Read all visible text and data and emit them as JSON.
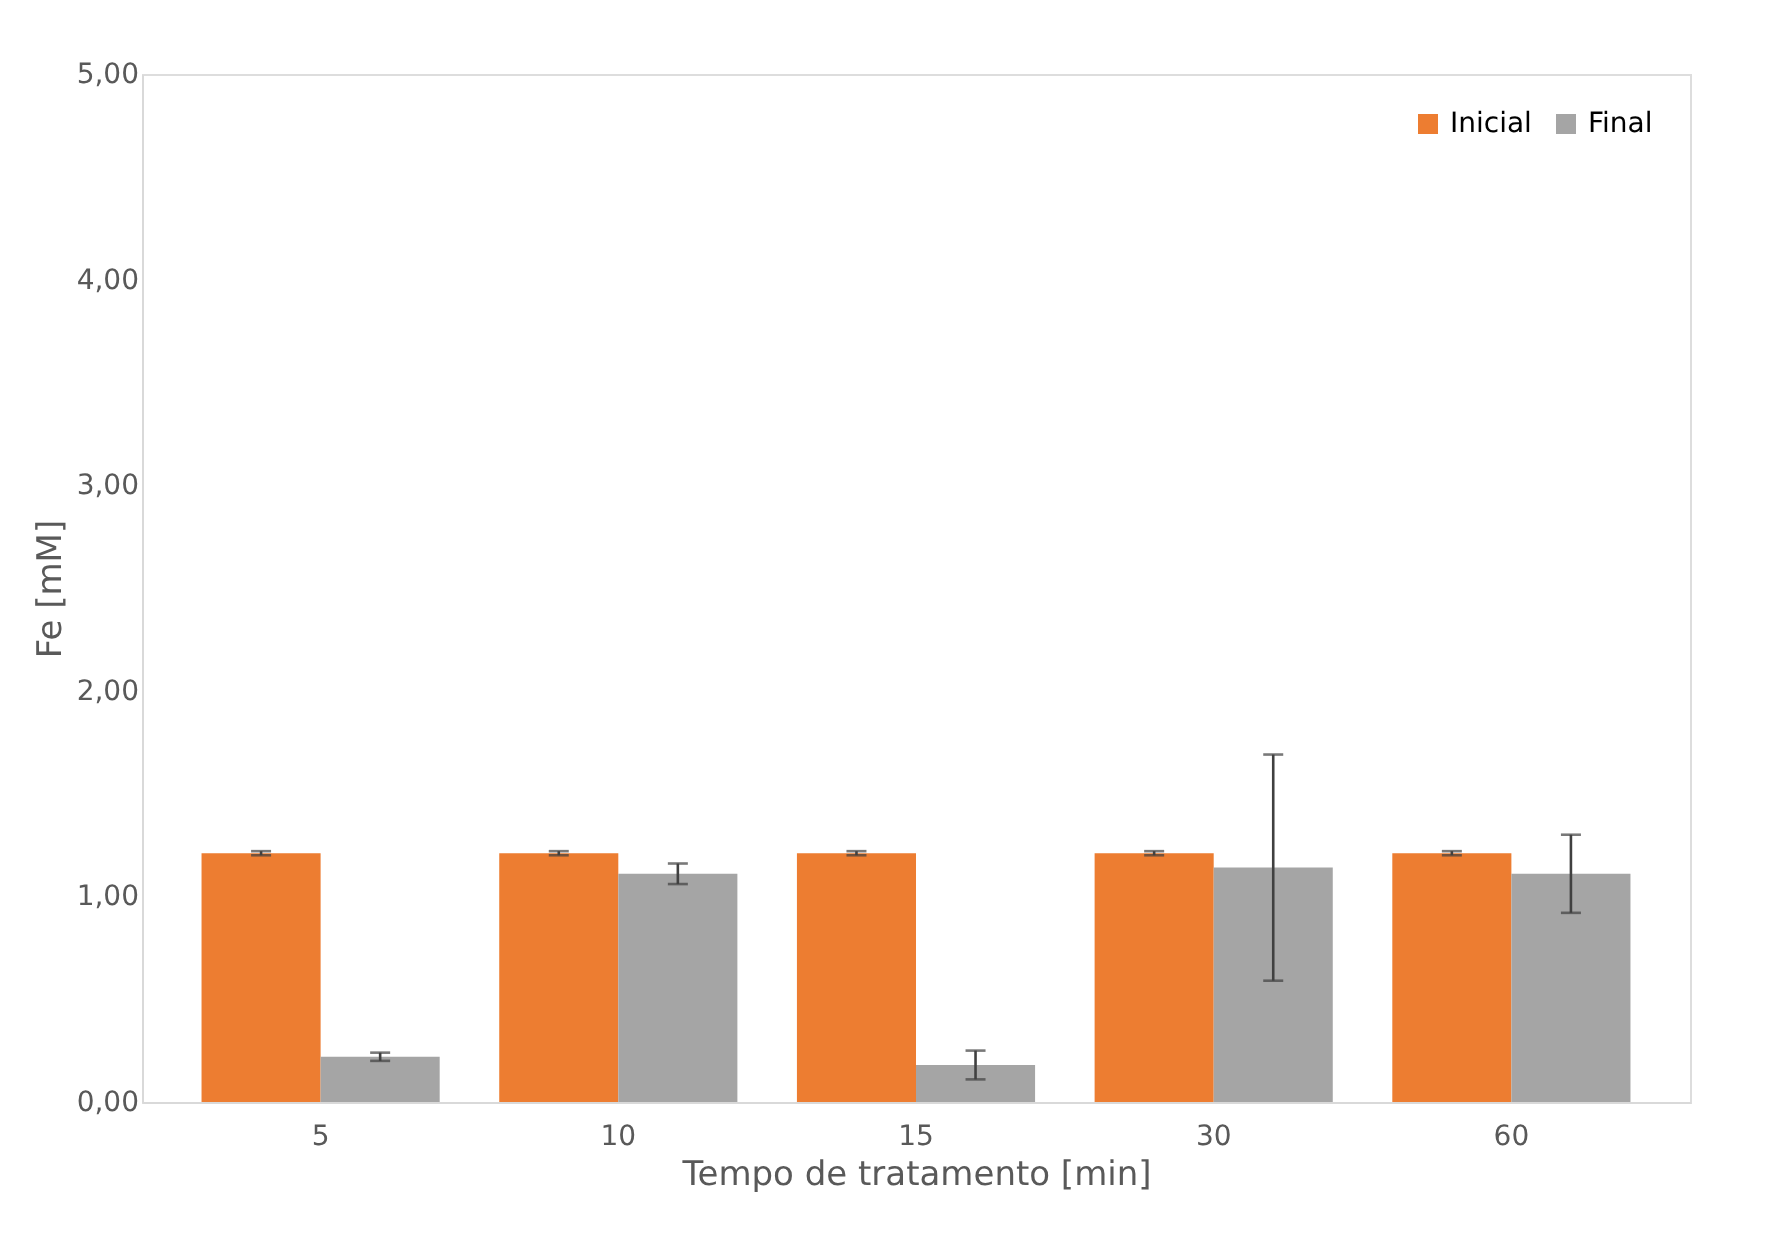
{
  "chart_data": {
    "type": "bar",
    "xlabel": "Tempo de tratamento [min]",
    "ylabel": "Fe [mM]",
    "categories": [
      "5",
      "10",
      "15",
      "30",
      "60"
    ],
    "series": [
      {
        "name": "Inicial",
        "color": "#ed7d31",
        "values": [
          1.21,
          1.21,
          1.21,
          1.21,
          1.21
        ],
        "errors": [
          0.01,
          0.01,
          0.01,
          0.01,
          0.01
        ]
      },
      {
        "name": "Final",
        "color": "#a5a5a5",
        "values": [
          0.22,
          1.11,
          0.18,
          1.14,
          1.11
        ],
        "errors": [
          [
            0.2,
            0.24
          ],
          [
            1.06,
            1.16
          ],
          [
            0.11,
            0.25
          ],
          [
            0.59,
            1.69
          ],
          [
            0.92,
            1.3
          ]
        ]
      }
    ],
    "ylim": [
      0,
      5
    ],
    "yticks": [
      {
        "value": 0,
        "label": "0,00"
      },
      {
        "value": 1,
        "label": "1,00"
      },
      {
        "value": 2,
        "label": "2,00"
      },
      {
        "value": 3,
        "label": "3,00"
      },
      {
        "value": 4,
        "label": "4,00"
      },
      {
        "value": 5,
        "label": "5,00"
      }
    ],
    "grid": false,
    "legend": "top right"
  }
}
